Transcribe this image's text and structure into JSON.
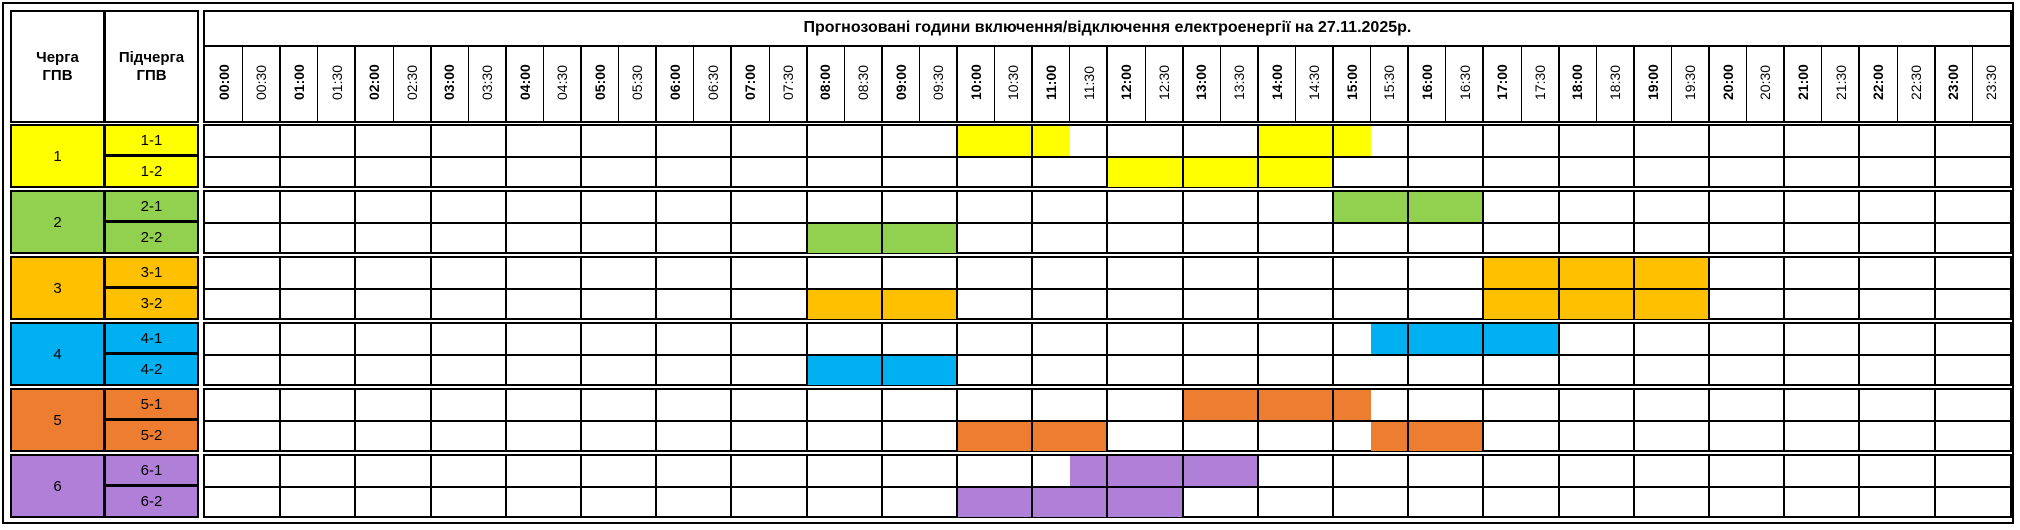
{
  "header": {
    "queue_label": "Черга\nГПВ",
    "subqueue_label": "Підчерга\nГПВ",
    "title": "Прогнозовані години включення/відключення електроенергії на 27.11.2025р."
  },
  "time_slots": [
    "00:00",
    "00:30",
    "01:00",
    "01:30",
    "02:00",
    "02:30",
    "03:00",
    "03:30",
    "04:00",
    "04:30",
    "05:00",
    "05:30",
    "06:00",
    "06:30",
    "07:00",
    "07:30",
    "08:00",
    "08:30",
    "09:00",
    "09:30",
    "10:00",
    "10:30",
    "11:00",
    "11:30",
    "12:00",
    "12:30",
    "13:00",
    "13:30",
    "14:00",
    "14:30",
    "15:00",
    "15:30",
    "16:00",
    "16:30",
    "17:00",
    "17:30",
    "18:00",
    "18:30",
    "19:00",
    "19:30",
    "20:00",
    "20:30",
    "21:00",
    "21:30",
    "22:00",
    "22:30",
    "23:00",
    "23:30"
  ],
  "groups": [
    {
      "name": "1",
      "color": "#FFFF00",
      "subs": [
        {
          "name": "1-1",
          "outage": [
            [
              20,
              23
            ],
            [
              28,
              31
            ]
          ]
        },
        {
          "name": "1-2",
          "outage": [
            [
              24,
              30
            ]
          ]
        }
      ]
    },
    {
      "name": "2",
      "color": "#92D050",
      "subs": [
        {
          "name": "2-1",
          "outage": [
            [
              30,
              34
            ]
          ]
        },
        {
          "name": "2-2",
          "outage": [
            [
              16,
              20
            ]
          ]
        }
      ]
    },
    {
      "name": "3",
      "color": "#FFC000",
      "subs": [
        {
          "name": "3-1",
          "outage": [
            [
              34,
              40
            ]
          ]
        },
        {
          "name": "3-2",
          "outage": [
            [
              16,
              20
            ],
            [
              34,
              40
            ]
          ]
        }
      ]
    },
    {
      "name": "4",
      "color": "#00B0F0",
      "subs": [
        {
          "name": "4-1",
          "outage": [
            [
              31,
              36
            ]
          ]
        },
        {
          "name": "4-2",
          "outage": [
            [
              16,
              20
            ]
          ]
        }
      ]
    },
    {
      "name": "5",
      "color": "#ED7D31",
      "subs": [
        {
          "name": "5-1",
          "outage": [
            [
              26,
              31
            ]
          ]
        },
        {
          "name": "5-2",
          "outage": [
            [
              20,
              24
            ],
            [
              31,
              34
            ]
          ]
        }
      ]
    },
    {
      "name": "6",
      "color": "#B07FD8",
      "subs": [
        {
          "name": "6-1",
          "outage": [
            [
              23,
              28
            ]
          ]
        },
        {
          "name": "6-2",
          "outage": [
            [
              20,
              26
            ]
          ]
        }
      ]
    }
  ]
}
